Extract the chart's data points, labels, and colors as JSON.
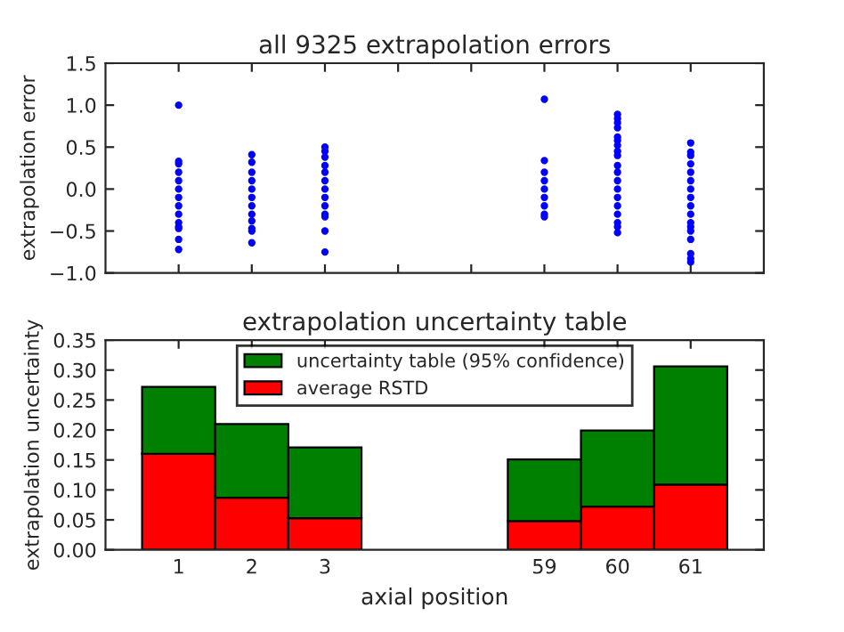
{
  "chart_data": [
    {
      "type": "scatter",
      "title": "all 9325 extrapolation errors",
      "ylabel": "extrapolation error",
      "categories": [
        "1",
        "2",
        "3",
        null,
        null,
        "59",
        "60",
        "61"
      ],
      "series": [
        {
          "color": "#0000ff",
          "x": [
            "1",
            "1",
            "1",
            "1",
            "1",
            "1",
            "1",
            "1",
            "1",
            "1",
            "1",
            "1",
            "1",
            "1",
            "2",
            "2",
            "2",
            "2",
            "2",
            "2",
            "2",
            "2",
            "2",
            "2",
            "2",
            "2",
            "3",
            "3",
            "3",
            "3",
            "3",
            "3",
            "3",
            "3",
            "3",
            "3",
            "3",
            "3",
            "3",
            "59",
            "59",
            "59",
            "59",
            "59",
            "59",
            "59",
            "59",
            "59",
            "60",
            "60",
            "60",
            "60",
            "60",
            "60",
            "60",
            "60",
            "60",
            "60",
            "60",
            "60",
            "60",
            "60",
            "60",
            "60",
            "60",
            "60",
            "60",
            "61",
            "61",
            "61",
            "61",
            "61",
            "61",
            "61",
            "61",
            "61",
            "61",
            "61",
            "61",
            "61",
            "61",
            "61",
            "61",
            "61"
          ],
          "values": [
            1.0,
            0.33,
            0.3,
            0.2,
            0.1,
            0.0,
            -0.1,
            -0.2,
            -0.3,
            -0.4,
            -0.45,
            -0.47,
            -0.6,
            -0.72,
            0.41,
            0.32,
            0.2,
            0.1,
            0.0,
            -0.1,
            -0.2,
            -0.3,
            -0.38,
            -0.47,
            -0.5,
            -0.64,
            0.5,
            0.45,
            0.38,
            0.28,
            0.2,
            0.1,
            0.0,
            -0.1,
            -0.2,
            -0.3,
            -0.33,
            -0.5,
            -0.75,
            1.07,
            0.34,
            0.2,
            0.1,
            0.0,
            -0.1,
            -0.2,
            -0.3,
            -0.33,
            0.89,
            0.84,
            0.79,
            0.73,
            0.62,
            0.58,
            0.52,
            0.45,
            0.4,
            0.28,
            0.2,
            0.1,
            0.0,
            -0.1,
            -0.2,
            -0.3,
            -0.4,
            -0.45,
            -0.52,
            0.55,
            0.44,
            0.4,
            0.3,
            0.2,
            0.1,
            0.0,
            -0.1,
            -0.2,
            -0.3,
            -0.4,
            -0.45,
            -0.5,
            -0.6,
            -0.77,
            -0.83,
            -0.87
          ]
        }
      ],
      "ylim": [
        -1.0,
        1.5
      ],
      "yticks": [
        {
          "value": -1.0,
          "label": "−1.0"
        },
        {
          "value": -0.5,
          "label": "−0.5"
        },
        {
          "value": 0.0,
          "label": "0.0"
        },
        {
          "value": 0.5,
          "label": "0.5"
        },
        {
          "value": 1.0,
          "label": "1.0"
        },
        {
          "value": 1.5,
          "label": "1.5"
        }
      ],
      "tick_labels": "y",
      "marker": "circle",
      "grid": false,
      "legend": false
    },
    {
      "type": "bar",
      "title": "extrapolation uncertainty table",
      "xlabel": "axial position",
      "ylabel": "extrapolation uncertainty",
      "categories": [
        "1",
        "2",
        "3",
        null,
        null,
        "59",
        "60",
        "61"
      ],
      "stacked": true,
      "series": [
        {
          "name": "average RSTD",
          "color": "#ff0000",
          "values": [
            0.16,
            0.087,
            0.053,
            null,
            null,
            0.048,
            0.072,
            0.109
          ]
        },
        {
          "name": "uncertainty table (95% confidence)",
          "color": "#008000",
          "values": [
            0.112,
            0.123,
            0.118,
            null,
            null,
            0.103,
            0.127,
            0.197
          ]
        }
      ],
      "ylim": [
        0,
        0.35
      ],
      "yticks": [
        {
          "value": 0,
          "label": "0.00"
        },
        {
          "value": 0.05,
          "label": "0.05"
        },
        {
          "value": 0.1,
          "label": "0.10"
        },
        {
          "value": 0.15,
          "label": "0.15"
        },
        {
          "value": 0.2,
          "label": "0.20"
        },
        {
          "value": 0.25,
          "label": "0.25"
        },
        {
          "value": 0.3,
          "label": "0.30"
        },
        {
          "value": 0.35,
          "label": "0.35"
        }
      ],
      "grid": false,
      "legend": "top"
    }
  ]
}
